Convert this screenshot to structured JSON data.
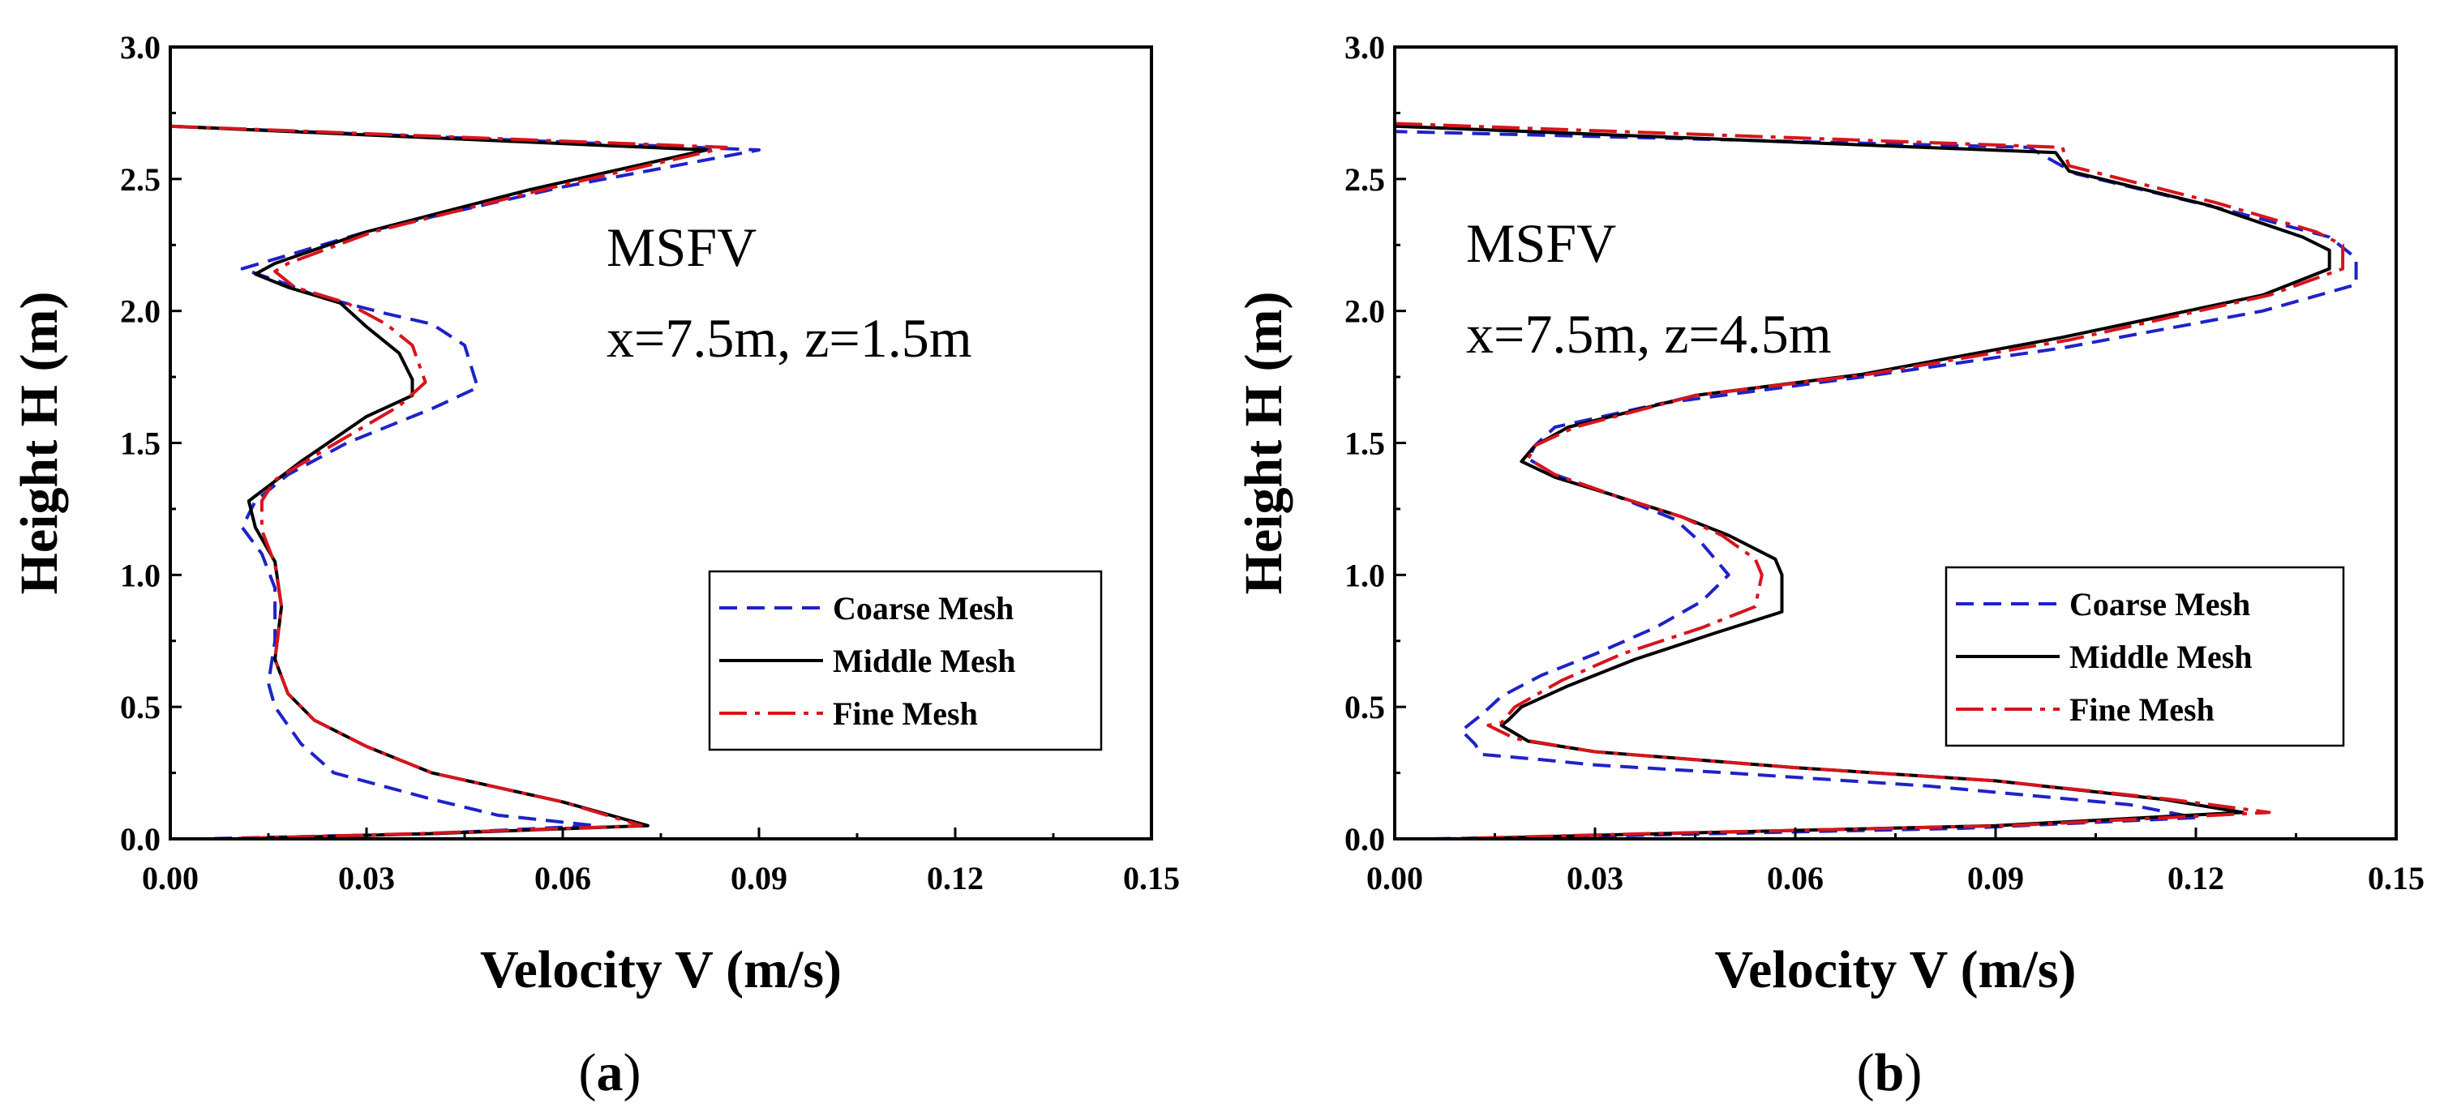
{
  "colors": {
    "coarse": "#1f22c8",
    "middle": "#000000",
    "fine": "#d8141c",
    "axis": "#000000"
  },
  "chart_data": [
    {
      "panel": "a",
      "panel_label": "a",
      "type": "line",
      "title": "",
      "annotation_lines": [
        "MSFV",
        "x=7.5m, z=1.5m"
      ],
      "xlabel": "Velocity V (m/s)",
      "ylabel": "Height H (m)",
      "xlim": [
        0,
        0.15
      ],
      "ylim": [
        0,
        3.0
      ],
      "xticks": [
        "0.00",
        "0.03",
        "0.06",
        "0.09",
        "0.12",
        "0.15"
      ],
      "yticks": [
        "0.0",
        "0.5",
        "1.0",
        "1.5",
        "2.0",
        "2.5",
        "3.0"
      ],
      "legend_position": "lower-right",
      "series": [
        {
          "name": "Coarse Mesh",
          "style": "dashed",
          "points": [
            [
              0.0,
              2.7
            ],
            [
              0.09,
              2.61
            ],
            [
              0.06,
              2.47
            ],
            [
              0.03,
              2.3
            ],
            [
              0.011,
              2.16
            ],
            [
              0.018,
              2.1
            ],
            [
              0.022,
              2.06
            ],
            [
              0.033,
              1.99
            ],
            [
              0.04,
              1.95
            ],
            [
              0.045,
              1.87
            ],
            [
              0.047,
              1.71
            ],
            [
              0.04,
              1.63
            ],
            [
              0.027,
              1.5
            ],
            [
              0.018,
              1.38
            ],
            [
              0.013,
              1.28
            ],
            [
              0.011,
              1.18
            ],
            [
              0.014,
              1.08
            ],
            [
              0.016,
              0.95
            ],
            [
              0.016,
              0.75
            ],
            [
              0.015,
              0.59
            ],
            [
              0.016,
              0.5
            ],
            [
              0.02,
              0.36
            ],
            [
              0.025,
              0.25
            ],
            [
              0.04,
              0.15
            ],
            [
              0.05,
              0.09
            ],
            [
              0.065,
              0.05
            ],
            [
              0.04,
              0.02
            ],
            [
              0.005,
              0.0
            ]
          ]
        },
        {
          "name": "Middle Mesh",
          "style": "solid",
          "points": [
            [
              0.0,
              2.7
            ],
            [
              0.082,
              2.61
            ],
            [
              0.055,
              2.46
            ],
            [
              0.03,
              2.3
            ],
            [
              0.016,
              2.18
            ],
            [
              0.013,
              2.14
            ],
            [
              0.018,
              2.09
            ],
            [
              0.026,
              2.03
            ],
            [
              0.03,
              1.94
            ],
            [
              0.035,
              1.84
            ],
            [
              0.037,
              1.74
            ],
            [
              0.037,
              1.68
            ],
            [
              0.03,
              1.6
            ],
            [
              0.02,
              1.43
            ],
            [
              0.012,
              1.28
            ],
            [
              0.013,
              1.18
            ],
            [
              0.016,
              1.05
            ],
            [
              0.017,
              0.88
            ],
            [
              0.016,
              0.68
            ],
            [
              0.018,
              0.55
            ],
            [
              0.022,
              0.45
            ],
            [
              0.03,
              0.35
            ],
            [
              0.04,
              0.25
            ],
            [
              0.06,
              0.14
            ],
            [
              0.073,
              0.05
            ],
            [
              0.04,
              0.02
            ],
            [
              0.01,
              0.0
            ]
          ]
        },
        {
          "name": "Fine Mesh",
          "style": "dashdot",
          "points": [
            [
              0.0,
              2.7
            ],
            [
              0.085,
              2.62
            ],
            [
              0.057,
              2.46
            ],
            [
              0.031,
              2.3
            ],
            [
              0.018,
              2.18
            ],
            [
              0.016,
              2.15
            ],
            [
              0.019,
              2.09
            ],
            [
              0.027,
              2.03
            ],
            [
              0.033,
              1.95
            ],
            [
              0.037,
              1.87
            ],
            [
              0.039,
              1.73
            ],
            [
              0.035,
              1.64
            ],
            [
              0.024,
              1.48
            ],
            [
              0.016,
              1.36
            ],
            [
              0.014,
              1.28
            ],
            [
              0.014,
              1.17
            ],
            [
              0.016,
              1.04
            ],
            [
              0.017,
              0.88
            ],
            [
              0.016,
              0.68
            ],
            [
              0.018,
              0.55
            ],
            [
              0.022,
              0.45
            ],
            [
              0.03,
              0.35
            ],
            [
              0.04,
              0.25
            ],
            [
              0.06,
              0.14
            ],
            [
              0.072,
              0.05
            ],
            [
              0.038,
              0.02
            ],
            [
              0.008,
              0.0
            ]
          ]
        }
      ]
    },
    {
      "panel": "b",
      "panel_label": "b",
      "type": "line",
      "title": "",
      "annotation_lines": [
        "MSFV",
        "x=7.5m, z=4.5m"
      ],
      "xlabel": "Velocity V (m/s)",
      "ylabel": "Height H (m)",
      "xlim": [
        0,
        0.15
      ],
      "ylim": [
        0,
        3.0
      ],
      "xticks": [
        "0.00",
        "0.03",
        "0.06",
        "0.09",
        "0.12",
        "0.15"
      ],
      "yticks": [
        "0.0",
        "0.5",
        "1.0",
        "1.5",
        "2.0",
        "2.5",
        "3.0"
      ],
      "legend_position": "lower-right",
      "series": [
        {
          "name": "Coarse Mesh",
          "style": "dashed",
          "points": [
            [
              0.0,
              2.7
            ],
            [
              0.0,
              2.68
            ],
            [
              0.095,
              2.62
            ],
            [
              0.102,
              2.52
            ],
            [
              0.125,
              2.38
            ],
            [
              0.14,
              2.28
            ],
            [
              0.144,
              2.2
            ],
            [
              0.144,
              2.1
            ],
            [
              0.13,
              2.0
            ],
            [
              0.1,
              1.86
            ],
            [
              0.07,
              1.75
            ],
            [
              0.04,
              1.65
            ],
            [
              0.024,
              1.56
            ],
            [
              0.021,
              1.49
            ],
            [
              0.02,
              1.44
            ],
            [
              0.024,
              1.38
            ],
            [
              0.033,
              1.3
            ],
            [
              0.042,
              1.21
            ],
            [
              0.046,
              1.12
            ],
            [
              0.05,
              1.0
            ],
            [
              0.046,
              0.9
            ],
            [
              0.039,
              0.8
            ],
            [
              0.03,
              0.7
            ],
            [
              0.022,
              0.62
            ],
            [
              0.016,
              0.54
            ],
            [
              0.013,
              0.47
            ],
            [
              0.01,
              0.41
            ],
            [
              0.012,
              0.36
            ],
            [
              0.013,
              0.32
            ],
            [
              0.022,
              0.3
            ],
            [
              0.03,
              0.28
            ],
            [
              0.05,
              0.25
            ],
            [
              0.08,
              0.2
            ],
            [
              0.11,
              0.13
            ],
            [
              0.12,
              0.08
            ],
            [
              0.085,
              0.04
            ],
            [
              0.03,
              0.01
            ],
            [
              0.005,
              0.0
            ]
          ]
        },
        {
          "name": "Middle Mesh",
          "style": "solid",
          "points": [
            [
              0.0,
              2.7
            ],
            [
              0.099,
              2.6
            ],
            [
              0.101,
              2.53
            ],
            [
              0.122,
              2.4
            ],
            [
              0.136,
              2.28
            ],
            [
              0.14,
              2.23
            ],
            [
              0.14,
              2.16
            ],
            [
              0.13,
              2.06
            ],
            [
              0.1,
              1.9
            ],
            [
              0.07,
              1.76
            ],
            [
              0.045,
              1.68
            ],
            [
              0.026,
              1.56
            ],
            [
              0.021,
              1.49
            ],
            [
              0.019,
              1.43
            ],
            [
              0.024,
              1.37
            ],
            [
              0.033,
              1.3
            ],
            [
              0.043,
              1.22
            ],
            [
              0.05,
              1.15
            ],
            [
              0.057,
              1.06
            ],
            [
              0.058,
              1.0
            ],
            [
              0.058,
              0.86
            ],
            [
              0.048,
              0.78
            ],
            [
              0.036,
              0.68
            ],
            [
              0.026,
              0.58
            ],
            [
              0.019,
              0.5
            ],
            [
              0.017,
              0.45
            ],
            [
              0.016,
              0.43
            ],
            [
              0.02,
              0.37
            ],
            [
              0.03,
              0.33
            ],
            [
              0.06,
              0.27
            ],
            [
              0.09,
              0.22
            ],
            [
              0.115,
              0.15
            ],
            [
              0.127,
              0.1
            ],
            [
              0.09,
              0.05
            ],
            [
              0.04,
              0.02
            ],
            [
              0.01,
              0.0
            ]
          ]
        },
        {
          "name": "Fine Mesh",
          "style": "dashdot",
          "points": [
            [
              0.0,
              2.71
            ],
            [
              0.1,
              2.62
            ],
            [
              0.101,
              2.55
            ],
            [
              0.123,
              2.41
            ],
            [
              0.138,
              2.3
            ],
            [
              0.142,
              2.25
            ],
            [
              0.142,
              2.16
            ],
            [
              0.131,
              2.06
            ],
            [
              0.101,
              1.89
            ],
            [
              0.071,
              1.76
            ],
            [
              0.045,
              1.68
            ],
            [
              0.027,
              1.56
            ],
            [
              0.021,
              1.49
            ],
            [
              0.02,
              1.44
            ],
            [
              0.024,
              1.38
            ],
            [
              0.033,
              1.3
            ],
            [
              0.043,
              1.22
            ],
            [
              0.049,
              1.15
            ],
            [
              0.054,
              1.06
            ],
            [
              0.055,
              1.0
            ],
            [
              0.054,
              0.88
            ],
            [
              0.046,
              0.8
            ],
            [
              0.034,
              0.7
            ],
            [
              0.025,
              0.6
            ],
            [
              0.018,
              0.5
            ],
            [
              0.016,
              0.44
            ],
            [
              0.014,
              0.43
            ],
            [
              0.018,
              0.38
            ],
            [
              0.03,
              0.33
            ],
            [
              0.06,
              0.27
            ],
            [
              0.09,
              0.22
            ],
            [
              0.116,
              0.15
            ],
            [
              0.131,
              0.1
            ],
            [
              0.092,
              0.05
            ],
            [
              0.038,
              0.02
            ],
            [
              0.008,
              0.0
            ]
          ]
        }
      ]
    }
  ]
}
